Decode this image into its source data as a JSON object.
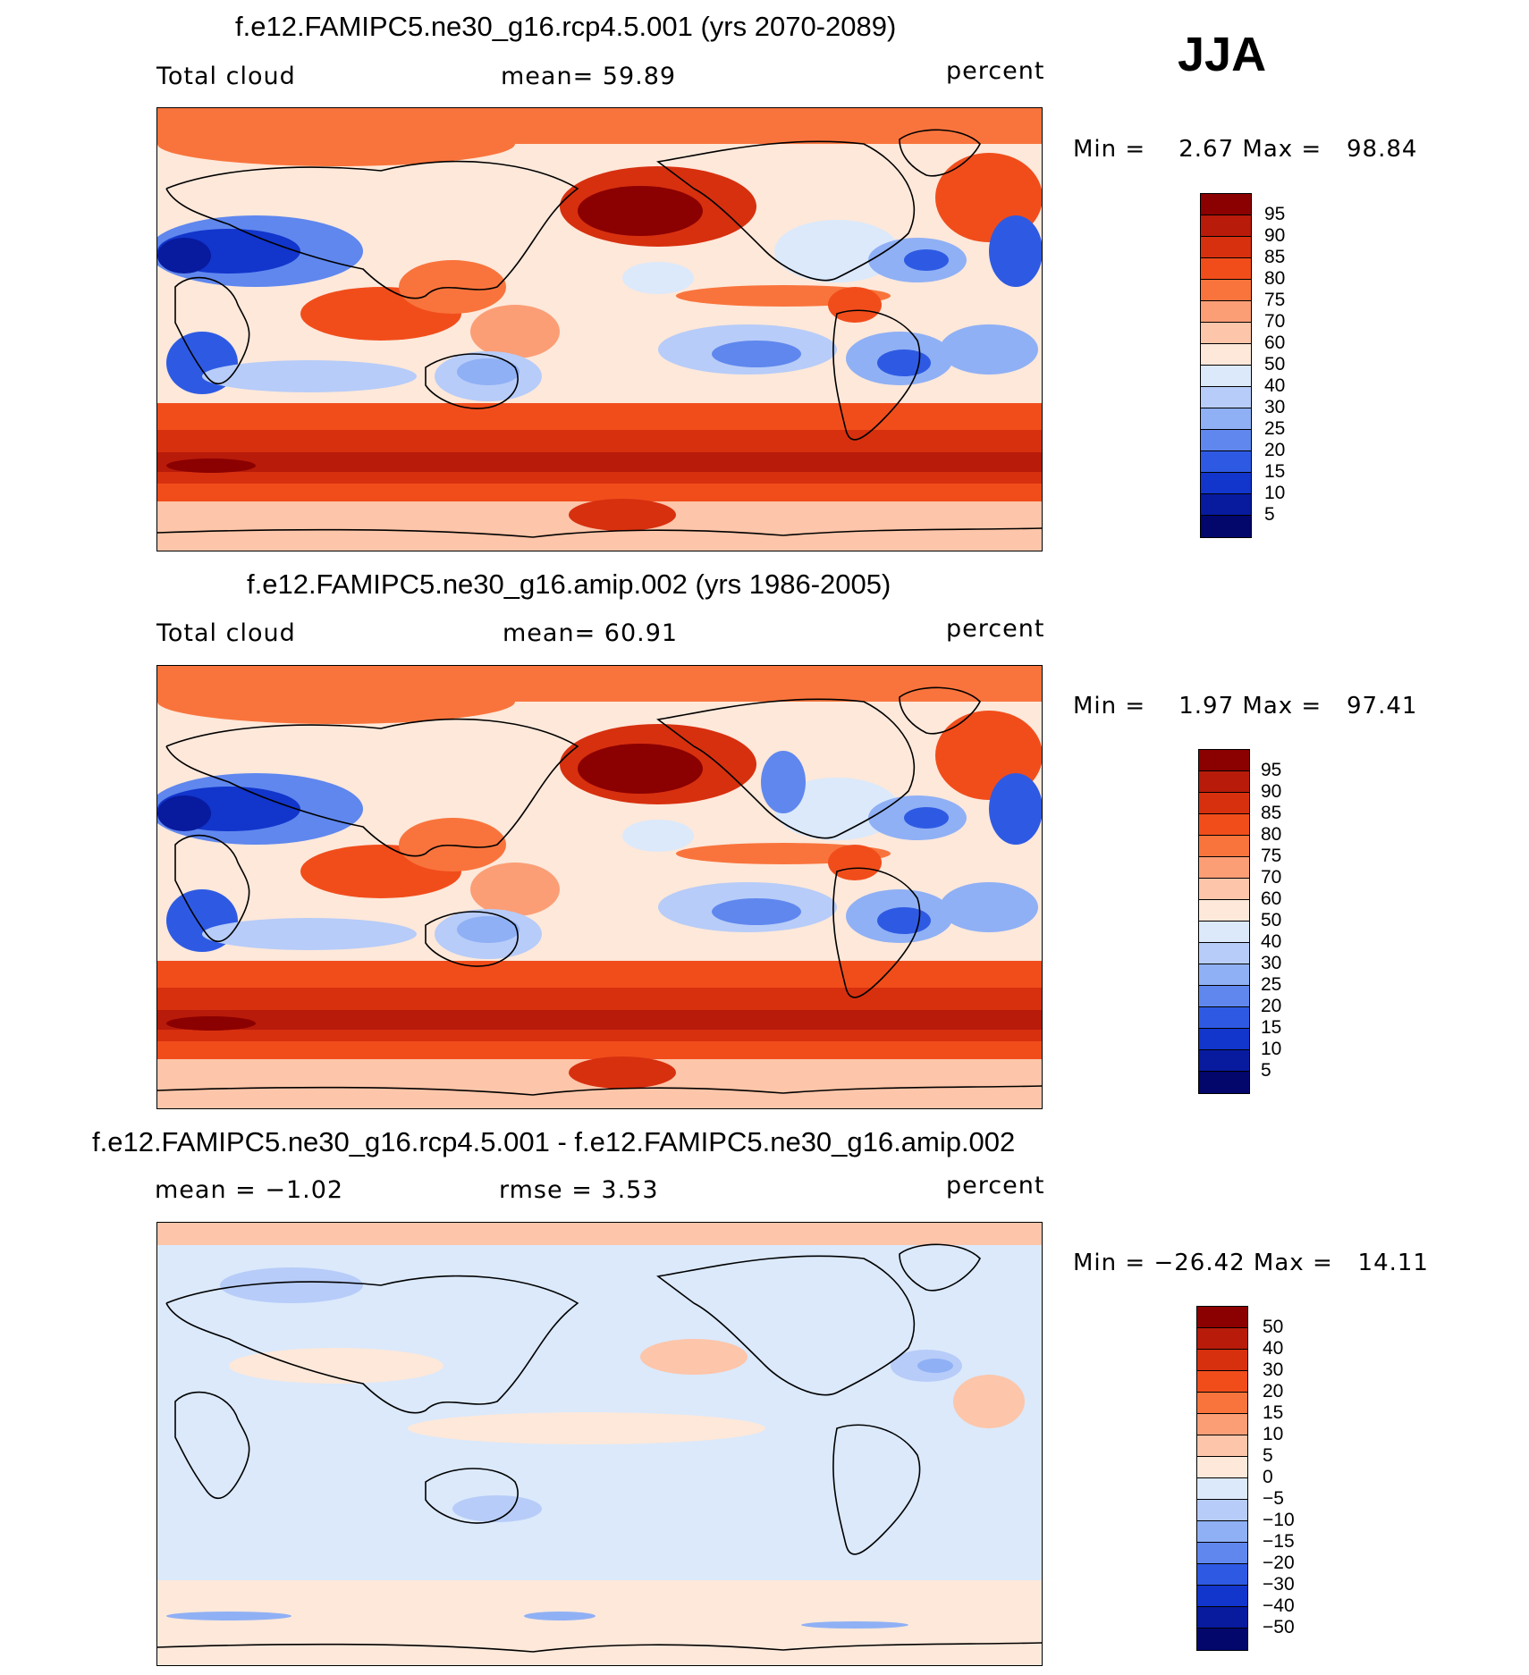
{
  "season": "JJA",
  "panels": [
    {
      "title": "f.e12.FAMIPC5.ne30_g16.rcp4.5.001 (yrs 2070-2089)",
      "left_label": "Total cloud",
      "mid_label": "mean=   59.89",
      "right_label": "percent",
      "minmax": "Min =    2.67 Max =   98.84",
      "type": "abs"
    },
    {
      "title": "f.e12.FAMIPC5.ne30_g16.amip.002 (yrs 1986-2005)",
      "left_label": "Total cloud",
      "mid_label": "mean=   60.91",
      "right_label": "percent",
      "minmax": "Min =    1.97 Max =   97.41",
      "type": "abs"
    },
    {
      "title": "f.e12.FAMIPC5.ne30_g16.rcp4.5.001 - f.e12.FAMIPC5.ne30_g16.amip.002",
      "left_label": "mean =   −1.02",
      "mid_label": "rmse =    3.53",
      "right_label": "percent",
      "minmax": "Min = −26.42 Max =   14.11",
      "type": "diff"
    }
  ],
  "colorbars": {
    "abs": {
      "labels": [
        "95",
        "90",
        "85",
        "80",
        "75",
        "70",
        "60",
        "50",
        "40",
        "30",
        "25",
        "20",
        "15",
        "10",
        "5"
      ],
      "colors": [
        "#8b0000",
        "#b81b0a",
        "#d7300f",
        "#f14d1b",
        "#f9743c",
        "#fb9e76",
        "#fdc5a9",
        "#fde8da",
        "#dbe9fb",
        "#b7ccf8",
        "#8fb0f5",
        "#5f87ee",
        "#2e5ae3",
        "#1235cc",
        "#081a9e",
        "#03076b"
      ]
    },
    "diff": {
      "labels": [
        "50",
        "40",
        "30",
        "20",
        "15",
        "10",
        "5",
        "0",
        "−5",
        "−10",
        "−15",
        "−20",
        "−30",
        "−40",
        "−50"
      ],
      "colors": [
        "#8b0000",
        "#b81b0a",
        "#d7300f",
        "#f14d1b",
        "#f9743c",
        "#fb9e76",
        "#fdc5a9",
        "#fde8da",
        "#dbe9fb",
        "#b7ccf8",
        "#8fb0f5",
        "#5f87ee",
        "#2e5ae3",
        "#1235cc",
        "#081a9e",
        "#03076b"
      ]
    }
  },
  "chart_data": [
    {
      "type": "heatmap",
      "title": "f.e12.FAMIPC5.ne30_g16.rcp4.5.001 (yrs 2070-2089)",
      "variable": "Total cloud",
      "units": "percent",
      "mean": 59.89,
      "min": 2.67,
      "max": 98.84,
      "levels": [
        5,
        10,
        15,
        20,
        25,
        30,
        40,
        50,
        60,
        70,
        75,
        80,
        85,
        90,
        95
      ]
    },
    {
      "type": "heatmap",
      "title": "f.e12.FAMIPC5.ne30_g16.amip.002 (yrs 1986-2005)",
      "variable": "Total cloud",
      "units": "percent",
      "mean": 60.91,
      "min": 1.97,
      "max": 97.41,
      "levels": [
        5,
        10,
        15,
        20,
        25,
        30,
        40,
        50,
        60,
        70,
        75,
        80,
        85,
        90,
        95
      ]
    },
    {
      "type": "heatmap",
      "title": "f.e12.FAMIPC5.ne30_g16.rcp4.5.001 - f.e12.FAMIPC5.ne30_g16.amip.002",
      "units": "percent",
      "mean": -1.02,
      "rmse": 3.53,
      "min": -26.42,
      "max": 14.11,
      "levels": [
        -50,
        -40,
        -30,
        -20,
        -15,
        -10,
        -5,
        0,
        5,
        10,
        15,
        20,
        30,
        40,
        50
      ]
    }
  ]
}
